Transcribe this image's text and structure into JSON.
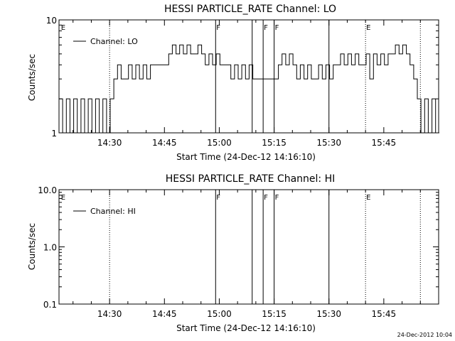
{
  "chart_data": [
    {
      "type": "line",
      "title": "HESSI PARTICLE_RATE Channel: LO",
      "xlabel": "Start Time (24-Dec-12 14:16:10)",
      "ylabel": "Counts/sec",
      "yscale": "log",
      "ylim": [
        1,
        10
      ],
      "xlim": [
        "14:16:10",
        "16:00:00"
      ],
      "x_ticks": [
        "14:30",
        "14:45",
        "15:00",
        "15:15",
        "15:30",
        "15:45"
      ],
      "y_ticks": [
        "1",
        "10"
      ],
      "legend": {
        "placement": "top-left",
        "entries": [
          "Channel: LO"
        ]
      },
      "grid": false,
      "series": [
        {
          "name": "Channel: LO",
          "x_minutes_after_start": [
            0,
            1,
            2,
            3,
            4,
            5,
            6,
            7,
            8,
            9,
            10,
            11,
            12,
            13,
            14,
            15,
            16,
            17,
            18,
            19,
            20,
            21,
            22,
            23,
            24,
            25,
            26,
            27,
            28,
            29,
            30,
            31,
            32,
            33,
            34,
            35,
            36,
            37,
            38,
            39,
            40,
            41,
            42,
            43,
            44,
            45,
            46,
            47,
            48,
            49,
            50,
            51,
            52,
            53,
            54,
            55,
            56,
            57,
            58,
            59,
            60,
            61,
            62,
            63,
            64,
            65,
            66,
            67,
            68,
            69,
            70,
            71,
            72,
            73,
            74,
            75,
            76,
            77,
            78,
            79,
            80,
            81,
            82,
            83,
            84,
            85,
            86,
            87,
            88,
            89,
            90,
            91,
            92,
            93,
            94,
            95,
            96,
            97,
            98,
            99,
            100,
            101,
            102,
            103
          ],
          "values": [
            2,
            1,
            2,
            1,
            2,
            1,
            2,
            1,
            2,
            1,
            2,
            1,
            2,
            1,
            2,
            3,
            4,
            3,
            3,
            4,
            3,
            4,
            3,
            4,
            3,
            4,
            4,
            4,
            4,
            4,
            5,
            6,
            5,
            6,
            5,
            6,
            5,
            5,
            6,
            5,
            4,
            5,
            4,
            5,
            4,
            4,
            4,
            3,
            4,
            3,
            4,
            3,
            4,
            3,
            3,
            3,
            3,
            3,
            3,
            3,
            4,
            5,
            4,
            5,
            4,
            3,
            4,
            3,
            4,
            3,
            3,
            4,
            3,
            4,
            3,
            4,
            4,
            5,
            4,
            5,
            4,
            5,
            4,
            4,
            5,
            3,
            5,
            4,
            5,
            4,
            5,
            5,
            6,
            5,
            6,
            5,
            4,
            3,
            2,
            1,
            2,
            1,
            2,
            1
          ]
        }
      ],
      "flags": [
        {
          "time": "14:16:30",
          "label": "E",
          "style": "none"
        },
        {
          "time": "14:30:00",
          "label": "",
          "style": "dotted"
        },
        {
          "time": "14:59:00",
          "label": "F",
          "style": "solid"
        },
        {
          "time": "15:09:00",
          "label": "",
          "style": "solid"
        },
        {
          "time": "15:12:00",
          "label": "F",
          "style": "solid"
        },
        {
          "time": "15:15:00",
          "label": "F",
          "style": "solid"
        },
        {
          "time": "15:30:00",
          "label": "",
          "style": "solid"
        },
        {
          "time": "15:40:00",
          "label": "E",
          "style": "dotted"
        },
        {
          "time": "15:55:00",
          "label": "",
          "style": "dotted"
        }
      ]
    },
    {
      "type": "line",
      "title": "HESSI PARTICLE_RATE Channel: HI",
      "xlabel": "Start Time (24-Dec-12 14:16:10)",
      "ylabel": "Counts/sec",
      "yscale": "log",
      "ylim": [
        0.1,
        10
      ],
      "xlim": [
        "14:16:10",
        "16:00:00"
      ],
      "x_ticks": [
        "14:30",
        "14:45",
        "15:00",
        "15:15",
        "15:30",
        "15:45"
      ],
      "y_ticks": [
        "0.1",
        "1.0",
        "10.0"
      ],
      "legend": {
        "placement": "top-left",
        "entries": [
          "Channel: HI"
        ]
      },
      "grid": false,
      "series": [
        {
          "name": "Channel: HI",
          "x_minutes_after_start": [],
          "values": []
        }
      ],
      "flags": [
        {
          "time": "14:16:30",
          "label": "E",
          "style": "none"
        },
        {
          "time": "14:30:00",
          "label": "",
          "style": "dotted"
        },
        {
          "time": "14:59:00",
          "label": "F",
          "style": "solid"
        },
        {
          "time": "15:09:00",
          "label": "",
          "style": "solid"
        },
        {
          "time": "15:12:00",
          "label": "F",
          "style": "solid"
        },
        {
          "time": "15:15:00",
          "label": "F",
          "style": "solid"
        },
        {
          "time": "15:30:00",
          "label": "",
          "style": "solid"
        },
        {
          "time": "15:40:00",
          "label": "E",
          "style": "dotted"
        },
        {
          "time": "15:55:00",
          "label": "",
          "style": "dotted"
        }
      ]
    }
  ],
  "footer_stamp": "24-Dec-2012 10:04"
}
